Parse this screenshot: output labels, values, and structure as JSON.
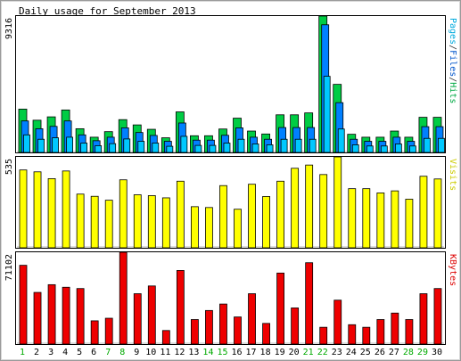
{
  "chart_data": [
    {
      "type": "bar",
      "title": "Daily usage for September 2013",
      "ylabel_max": "9316",
      "legend": [
        {
          "text": "Pages",
          "color": "#00aadd"
        },
        {
          "text": "/",
          "color": "#333333"
        },
        {
          "text": "Files",
          "color": "#0055cc"
        },
        {
          "text": "/",
          "color": "#333333"
        },
        {
          "text": "Hits",
          "color": "#00aa44"
        }
      ],
      "categories": [
        "1",
        "2",
        "3",
        "4",
        "5",
        "6",
        "7",
        "8",
        "9",
        "10",
        "11",
        "12",
        "13",
        "14",
        "15",
        "16",
        "17",
        "18",
        "19",
        "20",
        "21",
        "22",
        "23",
        "24",
        "25",
        "26",
        "27",
        "28",
        "29",
        "30"
      ],
      "ylim": [
        0,
        9316
      ],
      "series": [
        {
          "name": "Hits",
          "color": "#00cc44",
          "values": [
            2960,
            2200,
            2430,
            2900,
            1620,
            1040,
            1420,
            2240,
            1880,
            1580,
            1000,
            2770,
            1140,
            1140,
            1600,
            2340,
            1460,
            1260,
            2570,
            2570,
            2700,
            9316,
            4650,
            1240,
            1040,
            1040,
            1460,
            1040,
            2400,
            2400
          ]
        },
        {
          "name": "Files",
          "color": "#0080ff",
          "values": [
            2150,
            1620,
            1780,
            2150,
            1200,
            800,
            1040,
            1680,
            1360,
            1160,
            760,
            2010,
            840,
            840,
            1170,
            1680,
            1040,
            900,
            1700,
            1700,
            1700,
            8720,
            3400,
            900,
            760,
            760,
            1040,
            760,
            1760,
            1760
          ]
        },
        {
          "name": "Pages",
          "color": "#00c8ff",
          "values": [
            1200,
            900,
            1000,
            1040,
            640,
            460,
            600,
            920,
            760,
            640,
            420,
            1100,
            480,
            480,
            640,
            900,
            580,
            520,
            900,
            900,
            900,
            5200,
            1600,
            520,
            440,
            440,
            580,
            440,
            960,
            960
          ]
        }
      ],
      "color_hits": "#00cc44",
      "color_files": "#0080ff",
      "color_pages": "#00c8ff"
    },
    {
      "type": "bar",
      "ylabel_max": "535",
      "legend": [
        {
          "text": "Visits",
          "color": "#cccc00"
        }
      ],
      "categories": [
        "1",
        "2",
        "3",
        "4",
        "5",
        "6",
        "7",
        "8",
        "9",
        "10",
        "11",
        "12",
        "13",
        "14",
        "15",
        "16",
        "17",
        "18",
        "19",
        "20",
        "21",
        "22",
        "23",
        "24",
        "25",
        "26",
        "27",
        "28",
        "29",
        "30"
      ],
      "ylim": [
        0,
        535
      ],
      "series": [
        {
          "name": "Visits",
          "color": "#ffff00",
          "values": [
            458,
            447,
            407,
            452,
            316,
            303,
            280,
            400,
            312,
            307,
            294,
            392,
            242,
            237,
            366,
            227,
            374,
            302,
            392,
            468,
            487,
            431,
            535,
            348,
            348,
            323,
            335,
            286,
            421,
            405
          ]
        }
      ]
    },
    {
      "type": "bar",
      "ylabel_max": "71102",
      "legend": [
        {
          "text": "KBytes",
          "color": "#dd0000"
        }
      ],
      "categories": [
        "1",
        "2",
        "3",
        "4",
        "5",
        "6",
        "7",
        "8",
        "9",
        "10",
        "11",
        "12",
        "13",
        "14",
        "15",
        "16",
        "17",
        "18",
        "19",
        "20",
        "21",
        "22",
        "23",
        "24",
        "25",
        "26",
        "27",
        "28",
        "29",
        "30"
      ],
      "ylim": [
        0,
        71102
      ],
      "series": [
        {
          "name": "KBytes",
          "color": "#ee0000",
          "values": [
            61000,
            40000,
            46000,
            44000,
            43000,
            18000,
            20000,
            71102,
            39000,
            45000,
            10500,
            57000,
            19000,
            26000,
            31000,
            21000,
            39000,
            16000,
            55000,
            28000,
            63000,
            13000,
            34000,
            15000,
            13000,
            19000,
            24000,
            19000,
            39000,
            43000
          ]
        }
      ]
    }
  ],
  "x_labels": [
    "1",
    "2",
    "3",
    "4",
    "5",
    "6",
    "7",
    "8",
    "9",
    "10",
    "11",
    "12",
    "13",
    "14",
    "15",
    "16",
    "17",
    "18",
    "19",
    "20",
    "21",
    "22",
    "23",
    "24",
    "25",
    "26",
    "27",
    "28",
    "29",
    "30"
  ],
  "weekend_days": [
    "1",
    "7",
    "8",
    "14",
    "15",
    "21",
    "22",
    "28",
    "29"
  ],
  "x_label_color_weekday": "#000000",
  "x_label_color_weekend": "#00aa00"
}
